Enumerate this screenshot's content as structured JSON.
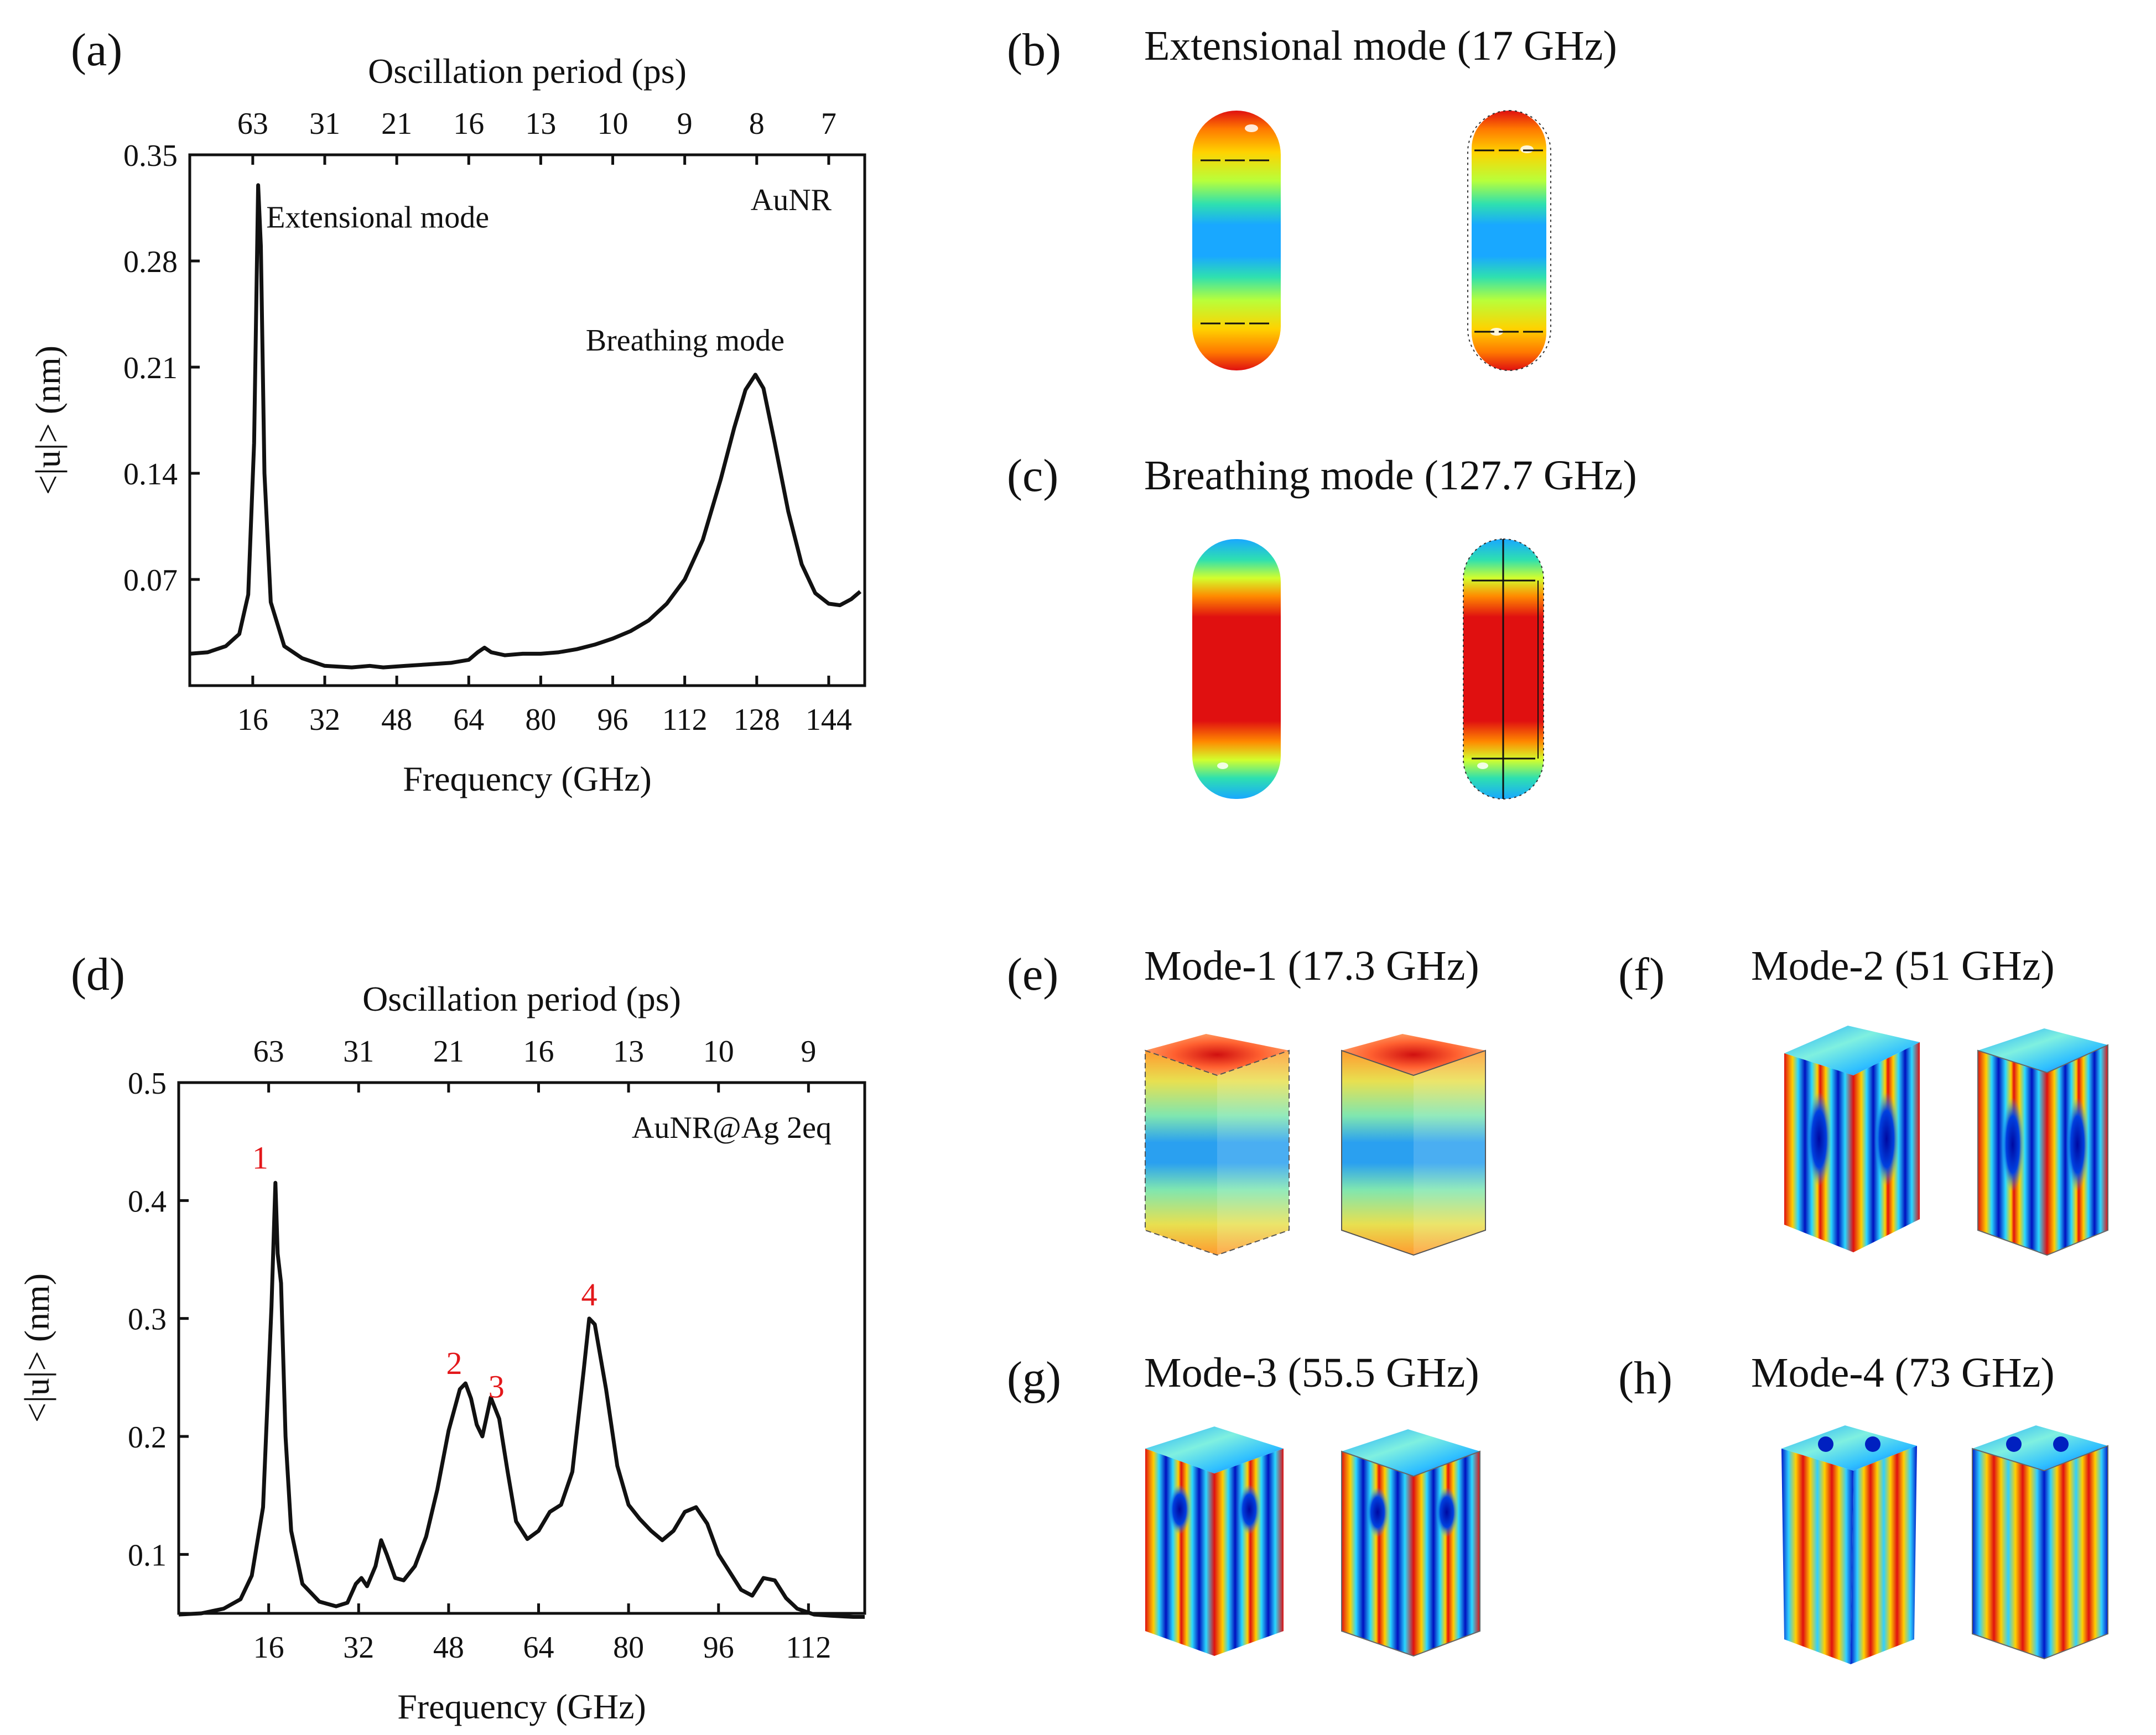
{
  "panels": {
    "a": "(a)",
    "b": "(b)",
    "c": "(c)",
    "d": "(d)",
    "e": "(e)",
    "f": "(f)",
    "g": "(g)",
    "h": "(h)"
  },
  "mode_titles": {
    "b": "Extensional mode (17 GHz)",
    "c": "Breathing mode (127.7 GHz)",
    "e": "Mode-1 (17.3 GHz)",
    "f": "Mode-2 (51 GHz)",
    "g": "Mode-3 (55.5 GHz)",
    "h": "Mode-4 (73 GHz)"
  },
  "colors": {
    "curve": "#111111",
    "annotation_red": "#e3171a",
    "jet": [
      "#0000c8",
      "#0a64ff",
      "#19c3ff",
      "#55ff9a",
      "#d2ff2d",
      "#ffd200",
      "#ff7800",
      "#e01010"
    ]
  },
  "chart_data": [
    {
      "id": "a",
      "type": "line",
      "title": "",
      "xlabel": "Frequency (GHz)",
      "ylabel": "<|u|> (nm)",
      "top_xlabel": "Oscillation period (ps)",
      "xlim": [
        2,
        152
      ],
      "ylim": [
        0.0,
        0.35
      ],
      "xticks": [
        16,
        32,
        48,
        64,
        80,
        96,
        112,
        128,
        144
      ],
      "yticks": [
        0.07,
        0.14,
        0.21,
        0.28,
        0.35
      ],
      "ytick_labels": [
        "0.07",
        "0.14",
        "0.21",
        "0.28",
        "0.35"
      ],
      "top_ticks": [
        {
          "label": "63",
          "freq": 16
        },
        {
          "label": "31",
          "freq": 32
        },
        {
          "label": "21",
          "freq": 48
        },
        {
          "label": "16",
          "freq": 64
        },
        {
          "label": "13",
          "freq": 80
        },
        {
          "label": "10",
          "freq": 96
        },
        {
          "label": "9",
          "freq": 112
        },
        {
          "label": "8",
          "freq": 128
        },
        {
          "label": "7",
          "freq": 144
        }
      ],
      "sample_label": "AuNR",
      "series": [
        {
          "name": "AuNR",
          "x": [
            2,
            6,
            10,
            13,
            15,
            16.3,
            17.2,
            17.8,
            18.6,
            20,
            23,
            27,
            32,
            38,
            42,
            45,
            50,
            55,
            60,
            64,
            66,
            67.5,
            69,
            72,
            76,
            80,
            84,
            88,
            92,
            96,
            100,
            104,
            108,
            112,
            116,
            120,
            123,
            125.5,
            127.7,
            129.5,
            132,
            135,
            138,
            141,
            144,
            146.5,
            149,
            151
          ],
          "y": [
            0.021,
            0.022,
            0.026,
            0.034,
            0.06,
            0.16,
            0.33,
            0.29,
            0.14,
            0.055,
            0.026,
            0.018,
            0.013,
            0.012,
            0.013,
            0.012,
            0.013,
            0.014,
            0.015,
            0.017,
            0.022,
            0.025,
            0.022,
            0.02,
            0.021,
            0.021,
            0.022,
            0.024,
            0.027,
            0.031,
            0.036,
            0.043,
            0.054,
            0.07,
            0.096,
            0.136,
            0.17,
            0.195,
            0.205,
            0.196,
            0.16,
            0.115,
            0.08,
            0.061,
            0.054,
            0.053,
            0.057,
            0.062
          ]
        }
      ],
      "annotations": [
        {
          "text": "Extensional mode",
          "x": 19,
          "y": 0.302
        },
        {
          "text": "Breathing mode",
          "x": 90,
          "y": 0.221
        }
      ]
    },
    {
      "id": "d",
      "type": "line",
      "title": "",
      "xlabel": "Frequency (GHz)",
      "ylabel": "<|u|> (nm)",
      "top_xlabel": "Oscillation period (ps)",
      "xlim": [
        0,
        122
      ],
      "ylim": [
        0.05,
        0.5
      ],
      "xticks": [
        16,
        32,
        48,
        64,
        80,
        96,
        112
      ],
      "yticks": [
        0.1,
        0.2,
        0.3,
        0.4,
        0.5
      ],
      "ytick_labels": [
        "0.1",
        "0.2",
        "0.3",
        "0.4",
        "0.5"
      ],
      "top_ticks": [
        {
          "label": "63",
          "freq": 16
        },
        {
          "label": "31",
          "freq": 32
        },
        {
          "label": "21",
          "freq": 48
        },
        {
          "label": "16",
          "freq": 64
        },
        {
          "label": "13",
          "freq": 80
        },
        {
          "label": "10",
          "freq": 96
        },
        {
          "label": "9",
          "freq": 112
        }
      ],
      "sample_label": "AuNR@Ag 2eq",
      "series": [
        {
          "name": "AuNR@Ag 2eq",
          "x": [
            0,
            4,
            8,
            11,
            13,
            15,
            16.5,
            17.2,
            17.6,
            18.2,
            19,
            20,
            22,
            25,
            28,
            30,
            31.5,
            32.5,
            33.5,
            35,
            36,
            37,
            38.5,
            40,
            42,
            44,
            46,
            48,
            50,
            51,
            52,
            53,
            54,
            55.5,
            57,
            58.5,
            60,
            62,
            64,
            66,
            68,
            70,
            72,
            73,
            74,
            76,
            78,
            80,
            82,
            84,
            86,
            88,
            90,
            92,
            94,
            96,
            98,
            100,
            102,
            104,
            106,
            108,
            110,
            113,
            116,
            120,
            122
          ],
          "y": [
            0.049,
            0.05,
            0.054,
            0.062,
            0.082,
            0.14,
            0.31,
            0.415,
            0.355,
            0.33,
            0.2,
            0.12,
            0.075,
            0.06,
            0.056,
            0.059,
            0.075,
            0.08,
            0.073,
            0.09,
            0.112,
            0.1,
            0.08,
            0.078,
            0.09,
            0.115,
            0.155,
            0.205,
            0.24,
            0.245,
            0.232,
            0.21,
            0.2,
            0.233,
            0.215,
            0.17,
            0.128,
            0.113,
            0.12,
            0.136,
            0.142,
            0.17,
            0.255,
            0.3,
            0.295,
            0.24,
            0.175,
            0.142,
            0.13,
            0.12,
            0.112,
            0.12,
            0.136,
            0.14,
            0.126,
            0.1,
            0.085,
            0.07,
            0.065,
            0.08,
            0.078,
            0.063,
            0.054,
            0.049,
            0.048,
            0.047,
            0.047
          ]
        }
      ],
      "peaks": [
        {
          "label": "1",
          "x": 14.5,
          "y": 0.427
        },
        {
          "label": "2",
          "x": 49,
          "y": 0.253
        },
        {
          "label": "3",
          "x": 56.5,
          "y": 0.233
        },
        {
          "label": "4",
          "x": 73,
          "y": 0.311
        }
      ]
    }
  ]
}
